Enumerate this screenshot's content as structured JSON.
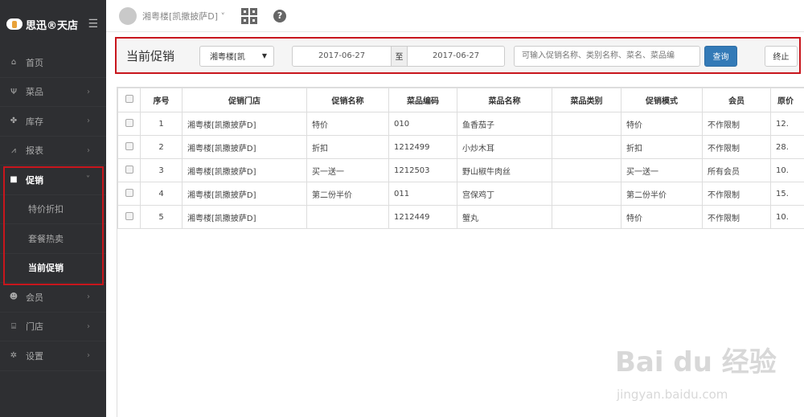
{
  "app": {
    "logo_text": "思迅®天店",
    "menu_icon": "hamburger-icon"
  },
  "sidebar": {
    "items": [
      {
        "label": "首页",
        "icon": "home-icon"
      },
      {
        "label": "菜品",
        "icon": "utensils-icon"
      },
      {
        "label": "库存",
        "icon": "cubes-icon"
      },
      {
        "label": "报表",
        "icon": "line-chart-icon"
      },
      {
        "label": "促销",
        "icon": "gift-icon",
        "expanded": true,
        "children": [
          {
            "label": "特价折扣"
          },
          {
            "label": "套餐热卖"
          },
          {
            "label": "当前促销",
            "active": true
          }
        ]
      },
      {
        "label": "会员",
        "icon": "users-icon"
      },
      {
        "label": "门店",
        "icon": "bank-icon"
      },
      {
        "label": "设置",
        "icon": "gear-icon"
      }
    ]
  },
  "topbar": {
    "store": "湘粤楼[凯撒披萨D] ˅"
  },
  "filter": {
    "title": "当前促销",
    "store_select": "湘粤楼[凯",
    "date_from": "2017-06-27",
    "to_label": "至",
    "date_to": "2017-06-27",
    "search_placeholder": "可输入促销名称、类别名称、菜名、菜品编",
    "query_label": "查询",
    "stop_label": "终止"
  },
  "table": {
    "headers": [
      "序号",
      "促销门店",
      "促销名称",
      "菜品编码",
      "菜品名称",
      "菜品类别",
      "促销模式",
      "会员",
      "原价"
    ],
    "rows": [
      [
        "1",
        "湘粤楼[凯撒披萨D]",
        "特价",
        "010",
        "鱼香茄子",
        "",
        "特价",
        "不作限制",
        "12."
      ],
      [
        "2",
        "湘粤楼[凯撒披萨D]",
        "折扣",
        "1212499",
        "小炒木耳",
        "",
        "折扣",
        "不作限制",
        "28."
      ],
      [
        "3",
        "湘粤楼[凯撒披萨D]",
        "买一送一",
        "1212503",
        "野山椒牛肉丝",
        "",
        "买一送一",
        "所有会员",
        "10."
      ],
      [
        "4",
        "湘粤楼[凯撒披萨D]",
        "第二份半价",
        "011",
        "宫保鸡丁",
        "",
        "第二份半价",
        "不作限制",
        "15."
      ],
      [
        "5",
        "湘粤楼[凯撒披萨D]",
        "",
        "1212449",
        "蟹丸",
        "",
        "特价",
        "不作限制",
        "10."
      ]
    ]
  },
  "watermark": {
    "line1": "Bai du 经验",
    "line2": "jingyan.baidu.com"
  },
  "colors": {
    "sidebar": "#2e2f32",
    "primary": "#337ab7",
    "highlight": "#c8161d"
  }
}
